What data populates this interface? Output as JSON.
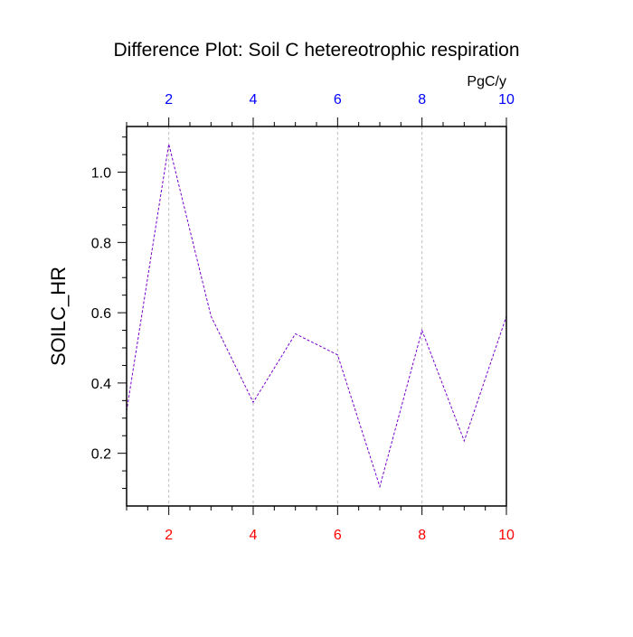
{
  "chart_data": {
    "type": "line",
    "title": "Difference Plot: Soil C hetereotrophic respiration",
    "ylabel": "SOILC_HR",
    "units": "PgC/y",
    "x": [
      1,
      2,
      3,
      4,
      5,
      6,
      7,
      8,
      9,
      10
    ],
    "series": [
      {
        "values": [
          0.32,
          1.08,
          0.59,
          0.345,
          0.54,
          0.48,
          0.105,
          0.55,
          0.235,
          0.59
        ],
        "color": "#7700cc"
      }
    ],
    "xlim": [
      1,
      10
    ],
    "ylim": [
      0.05,
      1.13
    ],
    "xticks_bottom": [
      2,
      4,
      6,
      8,
      10
    ],
    "xticks_top": [
      2,
      4,
      6,
      8,
      10
    ],
    "yticks": [
      0.2,
      0.4,
      0.6,
      0.8,
      1.0
    ],
    "ytick_labels": [
      "0.2",
      "0.4",
      "0.6",
      "0.8",
      "1.0"
    ],
    "bottom_tick_color": "#ff0000",
    "top_tick_color": "#0000ff",
    "gridlines": "vertical dashed",
    "grid_color": "#bbbbbb"
  }
}
